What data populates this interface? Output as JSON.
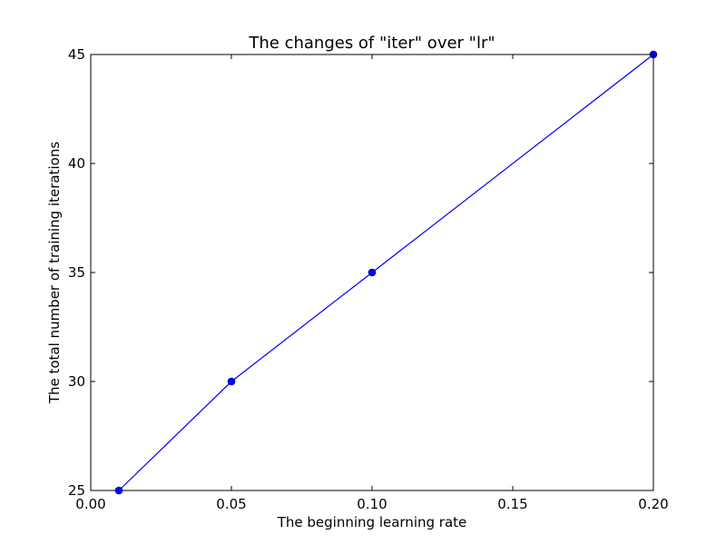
{
  "chart_data": {
    "type": "line",
    "title": "The changes of \"iter\" over \"lr\"",
    "xlabel": "The beginning learning rate",
    "ylabel": "The total number of training iterations",
    "xlim": [
      0.0,
      0.2
    ],
    "ylim": [
      25,
      45
    ],
    "xticks": [
      0.0,
      0.05,
      0.1,
      0.15,
      0.2
    ],
    "xtick_labels": [
      "0.00",
      "0.05",
      "0.10",
      "0.15",
      "0.20"
    ],
    "yticks": [
      25,
      30,
      35,
      40,
      45
    ],
    "ytick_labels": [
      "25",
      "30",
      "35",
      "40",
      "45"
    ],
    "grid": false,
    "series": [
      {
        "color": "#0000ff",
        "marker": "circle",
        "x": [
          0.01,
          0.05,
          0.1,
          0.2
        ],
        "y": [
          25,
          30,
          35,
          45
        ]
      }
    ]
  }
}
